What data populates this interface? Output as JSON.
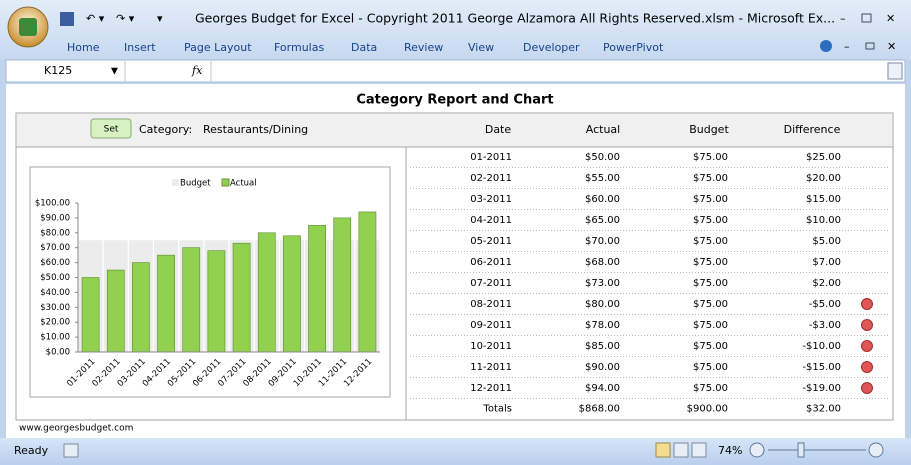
{
  "window": {
    "title": "Georges Budget for Excel - Copyright 2011 George Alzamora All Rights Reserved.xlsm - Microsoft Ex...",
    "name_box": "K125",
    "fx": "fx"
  },
  "ribbon": {
    "tabs": [
      "Home",
      "Insert",
      "Page Layout",
      "Formulas",
      "Data",
      "Review",
      "View",
      "Developer",
      "PowerPivot"
    ]
  },
  "sheet": {
    "title": "Category Report and Chart",
    "button": "Set",
    "category_label": "Category:",
    "category": "Restaurants/Dining",
    "footer": "www.georgesbudget.com"
  },
  "table": {
    "columns": [
      "Date",
      "Actual",
      "Budget",
      "Difference"
    ],
    "rows": [
      [
        "01-2011",
        "$50.00",
        "$75.00",
        "$25.00"
      ],
      [
        "02-2011",
        "$55.00",
        "$75.00",
        "$20.00"
      ],
      [
        "03-2011",
        "$60.00",
        "$75.00",
        "$15.00"
      ],
      [
        "04-2011",
        "$65.00",
        "$75.00",
        "$10.00"
      ],
      [
        "05-2011",
        "$70.00",
        "$75.00",
        "$5.00"
      ],
      [
        "06-2011",
        "$68.00",
        "$75.00",
        "$7.00"
      ],
      [
        "07-2011",
        "$73.00",
        "$75.00",
        "$2.00"
      ],
      [
        "08-2011",
        "$80.00",
        "$75.00",
        "-$5.00"
      ],
      [
        "09-2011",
        "$78.00",
        "$75.00",
        "-$3.00"
      ],
      [
        "10-2011",
        "$85.00",
        "$75.00",
        "-$10.00"
      ],
      [
        "11-2011",
        "$90.00",
        "$75.00",
        "-$15.00"
      ],
      [
        "12-2011",
        "$94.00",
        "$75.00",
        "-$19.00"
      ]
    ],
    "totals": [
      "Totals",
      "$868.00",
      "$900.00",
      "$32.00"
    ]
  },
  "chart_data": {
    "type": "bar",
    "categories": [
      "01-2011",
      "02-2011",
      "03-2011",
      "04-2011",
      "05-2011",
      "06-2011",
      "07-2011",
      "08-2011",
      "09-2011",
      "10-2011",
      "11-2011",
      "12-2011"
    ],
    "series": [
      {
        "name": "Budget",
        "color": "#ececec",
        "values": [
          75,
          75,
          75,
          75,
          75,
          75,
          75,
          75,
          75,
          75,
          75,
          75
        ]
      },
      {
        "name": "Actual",
        "color": "#92d050",
        "values": [
          50,
          55,
          60,
          65,
          70,
          68,
          73,
          80,
          78,
          85,
          90,
          94
        ]
      }
    ],
    "ylim": [
      0,
      100
    ],
    "yticks": [
      {
        "value": 0,
        "label": "$0.00"
      },
      {
        "value": 10,
        "label": "$10.00"
      },
      {
        "value": 20,
        "label": "$20.00"
      },
      {
        "value": 30,
        "label": "$30.00"
      },
      {
        "value": 40,
        "label": "$40.00"
      },
      {
        "value": 50,
        "label": "$50.00"
      },
      {
        "value": 60,
        "label": "$60.00"
      },
      {
        "value": 70,
        "label": "$70.00"
      },
      {
        "value": 80,
        "label": "$80.00"
      },
      {
        "value": 90,
        "label": "$90.00"
      },
      {
        "value": 100,
        "label": "$100.00"
      }
    ],
    "legend": "top"
  },
  "status": {
    "mode": "Ready",
    "zoom": "74%"
  }
}
